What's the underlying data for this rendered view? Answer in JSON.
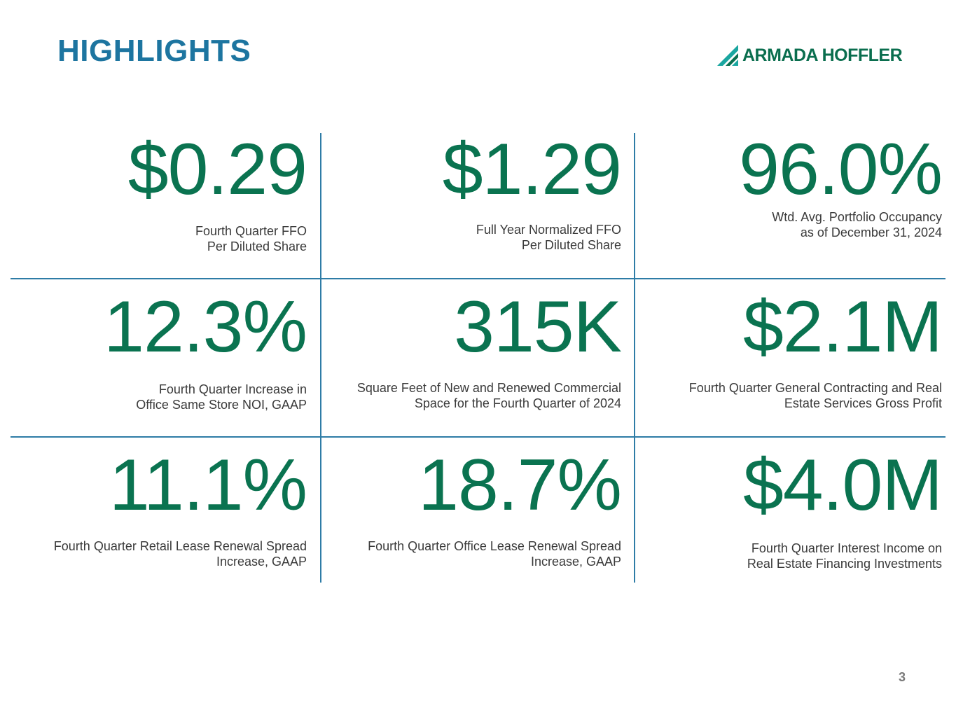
{
  "header": {
    "title": "HIGHLIGHTS",
    "logo_text": "ARMADA HOFFLER"
  },
  "highlights": [
    {
      "value": "$0.29",
      "line1": "Fourth Quarter FFO",
      "line2": "Per Diluted Share"
    },
    {
      "value": "$1.29",
      "line1": "Full Year Normalized FFO",
      "line2": "Per Diluted Share"
    },
    {
      "value": "96.0%",
      "line1": "Wtd. Avg. Portfolio Occupancy",
      "line2": "as of December 31, 2024"
    },
    {
      "value": "12.3%",
      "line1": "Fourth Quarter Increase in",
      "line2": "Office Same Store NOI, GAAP"
    },
    {
      "value": "315K",
      "line1": "Square Feet of New and Renewed Commercial",
      "line2": "Space for the Fourth Quarter of 2024"
    },
    {
      "value": "$2.1M",
      "line1": "Fourth Quarter General Contracting and Real",
      "line2": "Estate Services Gross Profit"
    },
    {
      "value": "11.1%",
      "line1": "Fourth Quarter Retail Lease Renewal Spread",
      "line2": "Increase, GAAP"
    },
    {
      "value": "18.7%",
      "line1": "Fourth Quarter Office Lease Renewal Spread",
      "line2": "Increase, GAAP"
    },
    {
      "value": "$4.0M",
      "line1": "Fourth Quarter Interest Income on",
      "line2": "Real Estate Financing Investments"
    }
  ],
  "footer": {
    "page_number": "3"
  },
  "colors": {
    "title": "#1d75a0",
    "value": "#0a7350",
    "divider": "#2e7ca6"
  }
}
